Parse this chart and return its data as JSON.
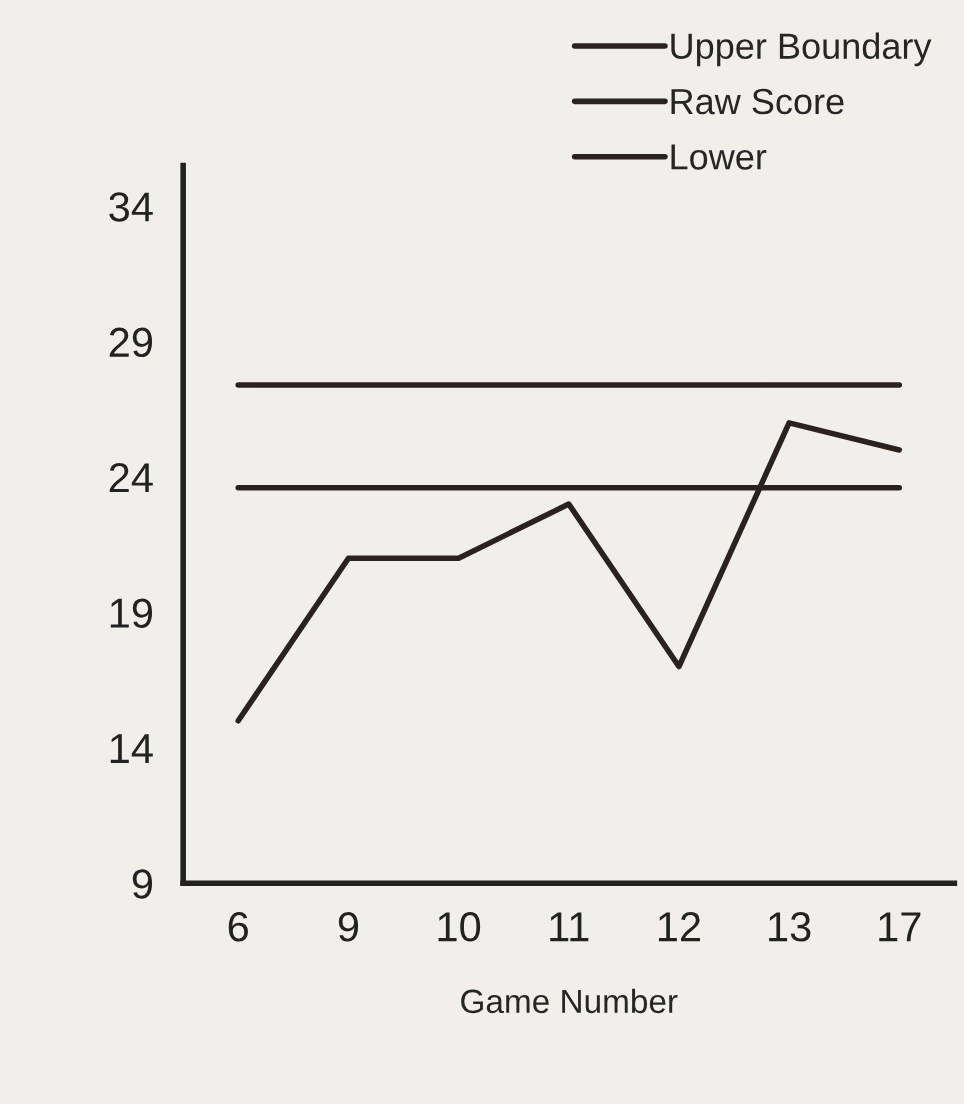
{
  "chart_data": {
    "type": "line",
    "xlabel": "Game Number",
    "categories": [
      "6",
      "9",
      "10",
      "11",
      "12",
      "13",
      "17"
    ],
    "series": [
      {
        "name": "Upper Boundary",
        "color": "#2b2220",
        "values": [
          27.4,
          27.4,
          27.4,
          27.4,
          27.4,
          27.4,
          27.4
        ]
      },
      {
        "name": "Raw Score",
        "color": "#2b2220",
        "values": [
          15,
          21,
          21,
          23,
          17,
          26,
          25
        ]
      },
      {
        "name": "Lower",
        "color": "#2b2220",
        "values": [
          23.6,
          23.6,
          23.6,
          23.6,
          23.6,
          23.6,
          23.6
        ]
      }
    ],
    "ylim": [
      9,
      35.5
    ],
    "yticks": [
      9,
      14,
      19,
      24,
      29,
      34
    ],
    "grid": false,
    "legend": "top right",
    "marker": "none",
    "line_style": "solid"
  }
}
